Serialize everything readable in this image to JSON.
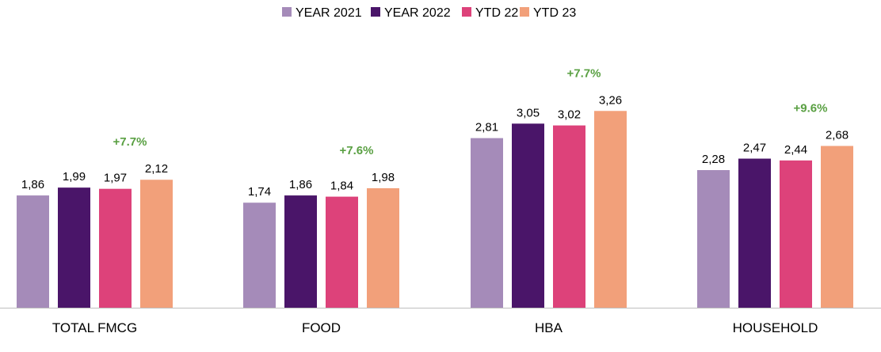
{
  "chart_data": {
    "type": "bar",
    "categories": [
      "TOTAL FMCG",
      "FOOD",
      "HBA",
      "HOUSEHOLD"
    ],
    "series": [
      {
        "name": "YEAR 2021",
        "color": "#a58bb9",
        "values": [
          1.86,
          1.74,
          2.81,
          2.28
        ],
        "labels": [
          "1,86",
          "1,74",
          "2,81",
          "2,28"
        ]
      },
      {
        "name": "YEAR 2022",
        "color": "#4a1569",
        "values": [
          1.99,
          1.86,
          3.05,
          2.47
        ],
        "labels": [
          "1,99",
          "1,86",
          "3,05",
          "2,47"
        ]
      },
      {
        "name": "YTD 22",
        "color": "#dd427a",
        "values": [
          1.97,
          1.84,
          3.02,
          2.44
        ],
        "labels": [
          "1,97",
          "1,84",
          "3,02",
          "2,44"
        ]
      },
      {
        "name": "YTD 23",
        "color": "#f2a07a",
        "values": [
          2.12,
          1.98,
          3.26,
          2.68
        ],
        "labels": [
          "2,12",
          "1,98",
          "3,26",
          "2,68"
        ]
      }
    ],
    "growth_labels": [
      "+7.7%",
      "+7.6%",
      "+7.7%",
      "+9.6%"
    ],
    "growth_color": "#5aa043",
    "ylim": [
      0,
      4.1
    ],
    "legend_position": "top-center",
    "grid": false,
    "axis_color": "#bfbfbf"
  }
}
